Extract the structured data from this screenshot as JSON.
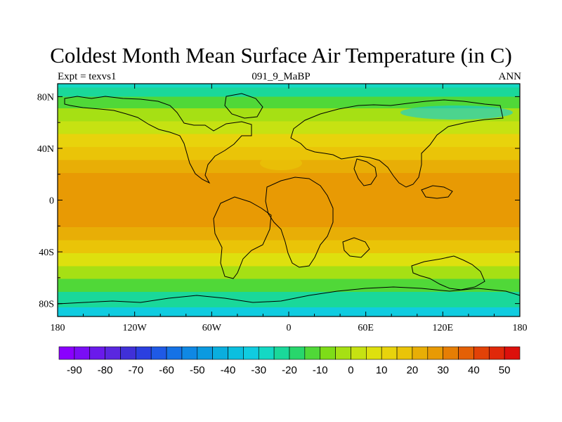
{
  "figure": {
    "title": "Coldest Month Mean Surface Air Temperature (in C)",
    "subtitle_left": "Expt = texvs1",
    "subtitle_center": "091_9_MaBP",
    "subtitle_right": "ANN"
  },
  "map": {
    "projection": "cylindrical-equidistant",
    "lon_range": [
      -180,
      180
    ],
    "lat_range": [
      -90,
      90
    ],
    "x_ticks": [
      {
        "value": -180,
        "label": "180"
      },
      {
        "value": -120,
        "label": "120W"
      },
      {
        "value": -60,
        "label": "60W"
      },
      {
        "value": 0,
        "label": "0"
      },
      {
        "value": 60,
        "label": "60E"
      },
      {
        "value": 120,
        "label": "120E"
      },
      {
        "value": 180,
        "label": "180"
      }
    ],
    "y_ticks": [
      {
        "value": 80,
        "label": "80N"
      },
      {
        "value": 40,
        "label": "40N"
      },
      {
        "value": 0,
        "label": "0"
      },
      {
        "value": -40,
        "label": "40S"
      },
      {
        "value": -80,
        "label": "80S"
      }
    ],
    "field_latitude_profile": [
      {
        "lat": 90,
        "value": -28
      },
      {
        "lat": 84,
        "value": -22
      },
      {
        "lat": 76,
        "value": -14
      },
      {
        "lat": 66,
        "value": -4
      },
      {
        "lat": 56,
        "value": 4
      },
      {
        "lat": 46,
        "value": 12
      },
      {
        "lat": 36,
        "value": 18
      },
      {
        "lat": 26,
        "value": 23
      },
      {
        "lat": 16,
        "value": 27
      },
      {
        "lat": 6,
        "value": 29
      },
      {
        "lat": -6,
        "value": 28
      },
      {
        "lat": -16,
        "value": 26
      },
      {
        "lat": -26,
        "value": 21
      },
      {
        "lat": -36,
        "value": 15
      },
      {
        "lat": -46,
        "value": 7
      },
      {
        "lat": -56,
        "value": -2
      },
      {
        "lat": -66,
        "value": -12
      },
      {
        "lat": -76,
        "value": -22
      },
      {
        "lat": -90,
        "value": -32
      }
    ]
  },
  "colorbar": {
    "levels": [
      -90,
      -85,
      -80,
      -75,
      -70,
      -65,
      -60,
      -55,
      -50,
      -45,
      -40,
      -35,
      -30,
      -25,
      -20,
      -15,
      -10,
      -5,
      0,
      5,
      10,
      15,
      20,
      25,
      30,
      35,
      40,
      45,
      50
    ],
    "labels": [
      "-90",
      "-80",
      "-70",
      "-60",
      "-50",
      "-40",
      "-30",
      "-20",
      "-10",
      "0",
      "10",
      "20",
      "30",
      "40",
      "50"
    ],
    "colors": [
      "#8a00ff",
      "#7a0df5",
      "#6a1aeb",
      "#5a27e0",
      "#4030d8",
      "#2b3fe0",
      "#1f5ae6",
      "#1572e6",
      "#0f88e4",
      "#0b9ae0",
      "#0aaede",
      "#0bbfdf",
      "#10cce0",
      "#14d8c4",
      "#1ad89a",
      "#28d66c",
      "#50d838",
      "#7edc18",
      "#a6e014",
      "#c6e212",
      "#dee00e",
      "#e8d30c",
      "#eac408",
      "#e8ae06",
      "#e89a04",
      "#e67e04",
      "#e46006",
      "#e24208",
      "#e0280a",
      "#dc100c"
    ]
  }
}
